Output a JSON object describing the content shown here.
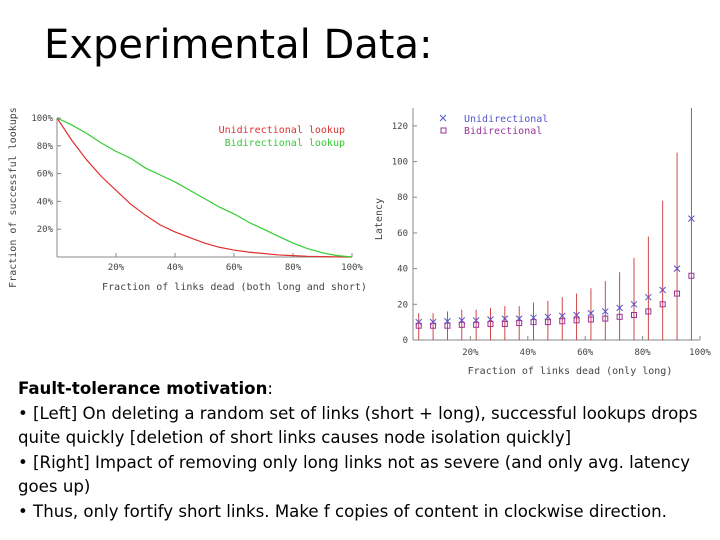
{
  "slide": {
    "title": "Experimental Data:",
    "heading": "Fault-tolerance motivation",
    "heading_suffix": ":",
    "bullets": [
      "• [Left] On deleting a random set of links (short + long), successful lookups drops quite quickly [deletion of short links causes node isolation quickly]",
      "• [Right] Impact of removing only long links not as severe (and only avg. latency goes up)",
      "• Thus, only fortify short links. Make f copies of content in clockwise direction."
    ]
  },
  "chart_data": [
    {
      "type": "line",
      "xlabel": "Fraction of links dead (both long and short)",
      "ylabel": "Fraction of successful lookups",
      "xlim": [
        0,
        100
      ],
      "ylim": [
        0,
        100
      ],
      "xticks": [
        "20%",
        "40%",
        "60%",
        "80%",
        "100%"
      ],
      "yticks": [
        "20%",
        "40%",
        "60%",
        "80%",
        "100%"
      ],
      "legend": "top-right",
      "x": [
        0,
        5,
        10,
        15,
        20,
        25,
        30,
        35,
        40,
        45,
        50,
        55,
        60,
        65,
        70,
        75,
        80,
        85,
        90,
        95,
        100
      ],
      "series": [
        {
          "name": "Unidirectional lookup",
          "color": "#e03030",
          "values": [
            100,
            84,
            70,
            58,
            48,
            38,
            30,
            23,
            18,
            14,
            10,
            7,
            5,
            3.5,
            2.5,
            1.5,
            1,
            0.5,
            0.3,
            0.1,
            0
          ]
        },
        {
          "name": "Bidirectional lookup",
          "color": "#33cc33",
          "values": [
            100,
            95,
            89,
            82,
            76,
            71,
            64,
            59,
            54,
            48,
            42,
            36,
            31,
            25,
            20,
            15,
            10,
            6,
            3,
            1,
            0
          ]
        }
      ]
    },
    {
      "type": "scatter",
      "xlabel": "Fraction of links dead (only long)",
      "ylabel": "Latency",
      "xlim": [
        0,
        100
      ],
      "ylim": [
        0,
        130
      ],
      "xticks": [
        "20%",
        "40%",
        "60%",
        "80%",
        "100%"
      ],
      "yticks": [
        "0",
        "20",
        "40",
        "60",
        "80",
        "100",
        "120"
      ],
      "legend": "top-left",
      "x": [
        2,
        7,
        12,
        17,
        22,
        27,
        32,
        37,
        42,
        47,
        52,
        57,
        62,
        67,
        72,
        77,
        82,
        87,
        92,
        97
      ],
      "series": [
        {
          "name": "Unidirectional",
          "color": "#5555cc",
          "marker": "x",
          "values": [
            10,
            10,
            10.5,
            11,
            11,
            11.5,
            12,
            12,
            12.5,
            13,
            13.5,
            14,
            15,
            16,
            18,
            20,
            24,
            28,
            40,
            68
          ],
          "error_high": [
            15,
            15,
            16,
            17,
            17,
            18,
            19,
            19,
            21,
            22,
            24,
            26,
            29,
            33,
            38,
            46,
            58,
            78,
            105,
            130
          ]
        },
        {
          "name": "Bidirectional",
          "color": "#993399",
          "marker": "square",
          "values": [
            8,
            8,
            8,
            8.5,
            8.5,
            9,
            9,
            9.5,
            10,
            10,
            10.5,
            11,
            11.5,
            12,
            13,
            14,
            16,
            20,
            26,
            36
          ]
        }
      ]
    }
  ]
}
